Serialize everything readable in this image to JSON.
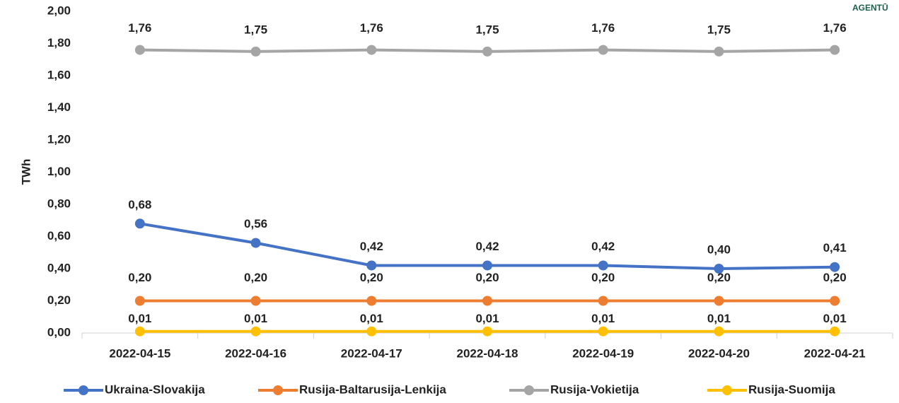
{
  "chart_data": {
    "type": "line",
    "y_label": "TWh",
    "logo_text": "AGENTŪ",
    "categories": [
      "2022-04-15",
      "2022-04-16",
      "2022-04-17",
      "2022-04-18",
      "2022-04-19",
      "2022-04-20",
      "2022-04-21"
    ],
    "series": [
      {
        "name": "Ukraina-Slovakija",
        "color": "#4472c4",
        "values": [
          0.68,
          0.56,
          0.42,
          0.42,
          0.42,
          0.4,
          0.41
        ],
        "value_labels": [
          "0,68",
          "0,56",
          "0,42",
          "0,42",
          "0,42",
          "0,40",
          "0,41"
        ]
      },
      {
        "name": "Rusija-Baltarusija-Lenkija",
        "color": "#ed7d31",
        "values": [
          0.2,
          0.2,
          0.2,
          0.2,
          0.2,
          0.2,
          0.2
        ],
        "value_labels": [
          "0,20",
          "0,20",
          "0,20",
          "0,20",
          "0,20",
          "0,20",
          "0,20"
        ]
      },
      {
        "name": "Rusija-Vokietija",
        "color": "#a5a5a5",
        "values": [
          1.76,
          1.75,
          1.76,
          1.75,
          1.76,
          1.75,
          1.76
        ],
        "value_labels": [
          "1,76",
          "1,75",
          "1,76",
          "1,75",
          "1,76",
          "1,75",
          "1,76"
        ]
      },
      {
        "name": "Rusija-Suomija",
        "color": "#ffc000",
        "values": [
          0.01,
          0.01,
          0.01,
          0.01,
          0.01,
          0.01,
          0.01
        ],
        "value_labels": [
          "0,01",
          "0,01",
          "0,01",
          "0,01",
          "0,01",
          "0,01",
          "0,01"
        ]
      }
    ],
    "ylim": [
      0,
      2
    ],
    "yticks": [
      {
        "value": 0,
        "label": "0,00"
      },
      {
        "value": 0.2,
        "label": "0,20"
      },
      {
        "value": 0.4,
        "label": "0,40"
      },
      {
        "value": 0.6,
        "label": "0,60"
      },
      {
        "value": 0.8,
        "label": "0,80"
      },
      {
        "value": 1,
        "label": "1,00"
      },
      {
        "value": 1.2,
        "label": "1,20"
      },
      {
        "value": 1.4,
        "label": "1,40"
      },
      {
        "value": 1.6,
        "label": "1,60"
      },
      {
        "value": 1.8,
        "label": "1,80"
      },
      {
        "value": 2,
        "label": "2,00"
      }
    ],
    "grid": false,
    "legend": "bottom"
  }
}
